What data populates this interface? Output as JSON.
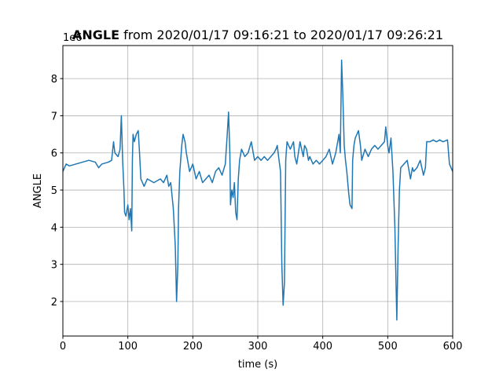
{
  "chart_data": {
    "type": "line",
    "title_variable": "ANGLE",
    "title": "from 2020/01/17 09:16:21 to 2020/01/17 09:26:21",
    "xlabel": "time (s)",
    "ylabel": "ANGLE",
    "offset_text": "1e6",
    "x": [
      0,
      5,
      10,
      20,
      30,
      40,
      50,
      55,
      60,
      70,
      75,
      78,
      80,
      85,
      88,
      90,
      92,
      94,
      95,
      97,
      100,
      102,
      104,
      106,
      107,
      108,
      110,
      113,
      116,
      118,
      120,
      125,
      130,
      140,
      150,
      155,
      160,
      163,
      166,
      170,
      173,
      175,
      177,
      178,
      180,
      183,
      185,
      188,
      190,
      195,
      200,
      205,
      210,
      215,
      220,
      225,
      230,
      235,
      240,
      245,
      250,
      253,
      255,
      257,
      258,
      260,
      262,
      264,
      266,
      268,
      270,
      272,
      275,
      280,
      285,
      290,
      295,
      300,
      305,
      310,
      315,
      320,
      325,
      328,
      330,
      332,
      335,
      337,
      339,
      341,
      343,
      345,
      350,
      355,
      357,
      360,
      365,
      370,
      372,
      375,
      378,
      380,
      385,
      390,
      395,
      400,
      405,
      410,
      415,
      420,
      425,
      427,
      429,
      431,
      433,
      435,
      437,
      440,
      442,
      445,
      446,
      448,
      450,
      455,
      458,
      460,
      465,
      470,
      475,
      480,
      485,
      490,
      495,
      497,
      500,
      502,
      505,
      508,
      511,
      513,
      514,
      516,
      518,
      520,
      525,
      530,
      535,
      538,
      540,
      545,
      550,
      555,
      558,
      560,
      565,
      570,
      575,
      580,
      585,
      592,
      595,
      600
    ],
    "series": [
      {
        "name": "ANGLE",
        "color": "#1f77b4",
        "values": [
          5.5,
          5.7,
          5.65,
          5.7,
          5.75,
          5.8,
          5.75,
          5.6,
          5.7,
          5.75,
          5.8,
          6.3,
          6.0,
          5.9,
          6.1,
          7.0,
          5.8,
          5.0,
          4.4,
          4.3,
          4.6,
          4.2,
          4.5,
          3.9,
          5.8,
          6.5,
          6.3,
          6.5,
          6.6,
          6.0,
          5.3,
          5.1,
          5.3,
          5.2,
          5.3,
          5.2,
          5.4,
          5.1,
          5.2,
          4.5,
          3.5,
          2.0,
          3.0,
          4.5,
          5.5,
          6.2,
          6.5,
          6.3,
          6.0,
          5.5,
          5.7,
          5.3,
          5.5,
          5.2,
          5.3,
          5.4,
          5.2,
          5.5,
          5.6,
          5.4,
          5.7,
          6.5,
          7.1,
          6.0,
          4.6,
          5.0,
          4.8,
          5.2,
          4.4,
          4.2,
          5.3,
          5.8,
          6.1,
          5.9,
          6.0,
          6.3,
          5.8,
          5.9,
          5.8,
          5.9,
          5.8,
          5.9,
          6.0,
          6.1,
          6.2,
          5.9,
          5.5,
          3.0,
          1.9,
          2.5,
          5.8,
          6.3,
          6.1,
          6.3,
          5.9,
          5.7,
          6.3,
          5.9,
          6.2,
          6.1,
          5.8,
          5.9,
          5.7,
          5.8,
          5.7,
          5.8,
          5.9,
          6.1,
          5.7,
          6.0,
          6.5,
          6.0,
          8.5,
          7.5,
          6.2,
          5.8,
          5.5,
          4.9,
          4.6,
          4.5,
          5.8,
          6.2,
          6.4,
          6.6,
          6.2,
          5.8,
          6.1,
          5.9,
          6.1,
          6.2,
          6.1,
          6.2,
          6.3,
          6.7,
          6.2,
          6.0,
          6.4,
          5.5,
          4.0,
          2.3,
          1.5,
          3.5,
          5.0,
          5.6,
          5.7,
          5.8,
          5.3,
          5.6,
          5.5,
          5.6,
          5.8,
          5.4,
          5.6,
          6.3,
          6.3,
          6.35,
          6.3,
          6.35,
          6.3,
          6.35,
          5.7,
          5.5
        ]
      }
    ],
    "xlim": [
      0,
      600
    ],
    "xticks": [
      0,
      100,
      200,
      300,
      400,
      500,
      600
    ],
    "ylim": [
      1.07,
      8.89
    ],
    "yticks": [
      2,
      3,
      4,
      5,
      6,
      7,
      8
    ],
    "grid": true
  }
}
